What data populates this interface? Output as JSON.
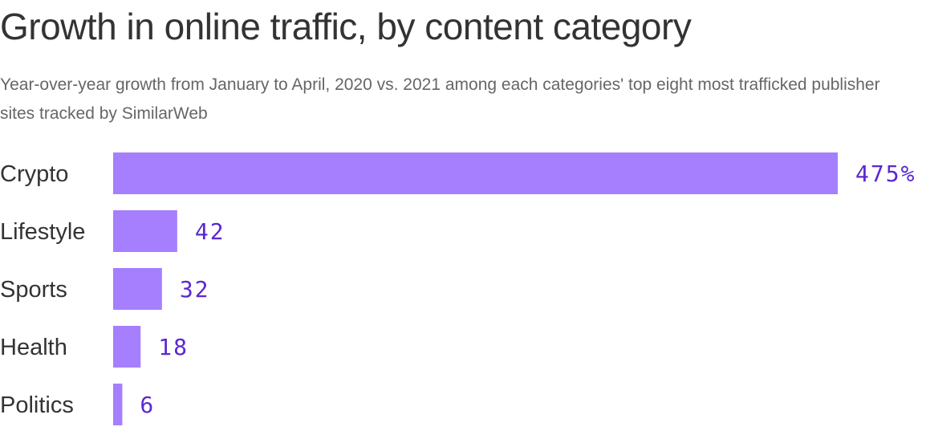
{
  "header": {
    "title": "Growth in online traffic, by content category",
    "subtitle": "Year-over-year growth from January to April, 2020 vs. 2021 among each categories' top eight most trafficked publisher sites tracked by SimilarWeb"
  },
  "colors": {
    "bar": "#a57ffd",
    "value_label": "#5b28d1"
  },
  "chart_data": {
    "type": "bar",
    "orientation": "horizontal",
    "title": "Growth in online traffic, by content category",
    "subtitle": "Year-over-year growth from January to April, 2020 vs. 2021 among each categories' top eight most trafficked publisher sites tracked by SimilarWeb",
    "xlabel": "",
    "ylabel": "",
    "unit": "%",
    "categories": [
      "Crypto",
      "Lifestyle",
      "Sports",
      "Health",
      "Politics"
    ],
    "values": [
      475,
      42,
      32,
      18,
      6
    ],
    "value_labels": [
      "475%",
      "42",
      "32",
      "18",
      "6"
    ],
    "xlim": [
      0,
      475
    ],
    "grid": false,
    "legend": "none"
  }
}
